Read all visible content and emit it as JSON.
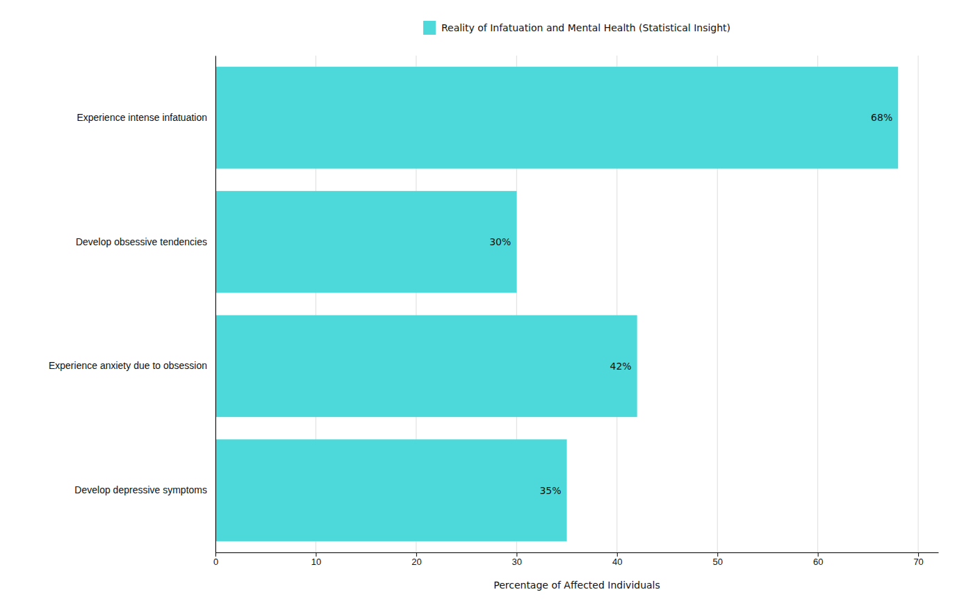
{
  "chart_data": {
    "type": "bar",
    "orientation": "horizontal",
    "categories": [
      "Experience intense infatuation",
      "Develop obsessive tendencies",
      "Experience anxiety due to obsession",
      "Develop depressive symptoms"
    ],
    "series": [
      {
        "name": "Reality of Infatuation and Mental Health (Statistical Insight)",
        "color": "#4DD9D9",
        "values": [
          68,
          30,
          42,
          35
        ],
        "value_labels": [
          "68%",
          "30%",
          "42%",
          "35%"
        ]
      }
    ],
    "xlabel": "Percentage of Affected Individuals",
    "xlim": [
      0,
      72
    ],
    "xticks": [
      0,
      10,
      20,
      30,
      40,
      50,
      60,
      70
    ],
    "grid": true,
    "legend": "top",
    "data_labels": true
  }
}
